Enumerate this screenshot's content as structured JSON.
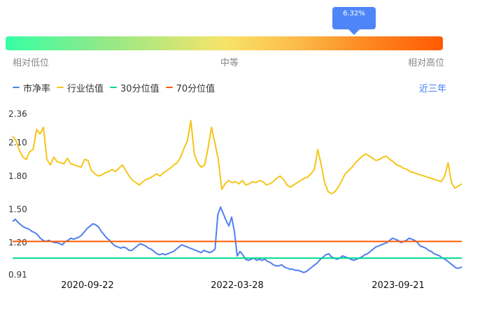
{
  "indicator": {
    "value_label": "6.32%",
    "low_label": "相对低位",
    "mid_label": "中等",
    "high_label": "相对高位"
  },
  "period_label": "近三年",
  "colors": {
    "pb": "#4e7ff0",
    "industry": "#f5c518",
    "p30": "#00d98b",
    "p70": "#ff5a00"
  },
  "chart_data": {
    "type": "line",
    "x_ticks": [
      "2020-09-22",
      "2022-03-28",
      "2023-09-21"
    ],
    "y_ticks": [
      0.91,
      1.2,
      1.5,
      1.8,
      2.1,
      2.36
    ],
    "ylim": [
      0.91,
      2.36
    ],
    "xlabel": "",
    "ylabel": "",
    "legend_position": "top-left",
    "series": [
      {
        "name": "市净率",
        "color": "#4e7ff0",
        "values": [
          1.39,
          1.41,
          1.38,
          1.36,
          1.34,
          1.33,
          1.32,
          1.3,
          1.29,
          1.27,
          1.24,
          1.22,
          1.21,
          1.22,
          1.21,
          1.2,
          1.2,
          1.19,
          1.18,
          1.21,
          1.22,
          1.24,
          1.23,
          1.24,
          1.25,
          1.27,
          1.3,
          1.33,
          1.35,
          1.37,
          1.36,
          1.34,
          1.3,
          1.27,
          1.24,
          1.22,
          1.19,
          1.17,
          1.16,
          1.15,
          1.16,
          1.15,
          1.13,
          1.13,
          1.15,
          1.17,
          1.19,
          1.18,
          1.17,
          1.15,
          1.14,
          1.12,
          1.1,
          1.09,
          1.1,
          1.09,
          1.1,
          1.11,
          1.12,
          1.14,
          1.16,
          1.18,
          1.17,
          1.16,
          1.15,
          1.14,
          1.13,
          1.12,
          1.11,
          1.13,
          1.12,
          1.11,
          1.12,
          1.14,
          1.45,
          1.52,
          1.46,
          1.4,
          1.35,
          1.43,
          1.3,
          1.08,
          1.12,
          1.09,
          1.05,
          1.04,
          1.05,
          1.06,
          1.04,
          1.05,
          1.04,
          1.05,
          1.03,
          1.02,
          1.0,
          0.99,
          0.99,
          1.0,
          0.98,
          0.97,
          0.96,
          0.96,
          0.95,
          0.95,
          0.94,
          0.93,
          0.94,
          0.96,
          0.98,
          1.0,
          1.02,
          1.05,
          1.07,
          1.09,
          1.1,
          1.07,
          1.06,
          1.05,
          1.06,
          1.08,
          1.07,
          1.06,
          1.05,
          1.04,
          1.05,
          1.06,
          1.07,
          1.09,
          1.1,
          1.12,
          1.14,
          1.16,
          1.17,
          1.18,
          1.19,
          1.2,
          1.22,
          1.24,
          1.23,
          1.22,
          1.2,
          1.21,
          1.22,
          1.24,
          1.23,
          1.22,
          1.2,
          1.17,
          1.16,
          1.15,
          1.13,
          1.12,
          1.1,
          1.09,
          1.08,
          1.06,
          1.05,
          1.03,
          1.01,
          0.99,
          0.97,
          0.97,
          0.98
        ]
      },
      {
        "name": "行业估值",
        "color": "#f5c518",
        "values": [
          2.16,
          2.12,
          2.03,
          1.97,
          1.95,
          2.02,
          2.04,
          2.22,
          2.18,
          2.24,
          1.95,
          1.9,
          1.97,
          1.93,
          1.92,
          1.91,
          1.96,
          1.91,
          1.9,
          1.89,
          1.88,
          1.95,
          1.94,
          1.85,
          1.82,
          1.8,
          1.81,
          1.83,
          1.84,
          1.86,
          1.84,
          1.87,
          1.9,
          1.85,
          1.8,
          1.76,
          1.74,
          1.72,
          1.75,
          1.77,
          1.78,
          1.8,
          1.82,
          1.8,
          1.83,
          1.85,
          1.87,
          1.9,
          1.92,
          1.97,
          2.05,
          2.12,
          2.3,
          2.0,
          1.92,
          1.88,
          1.9,
          2.05,
          2.24,
          2.1,
          1.95,
          1.68,
          1.73,
          1.76,
          1.74,
          1.75,
          1.73,
          1.76,
          1.72,
          1.73,
          1.75,
          1.74,
          1.76,
          1.75,
          1.72,
          1.73,
          1.75,
          1.78,
          1.8,
          1.77,
          1.72,
          1.7,
          1.72,
          1.74,
          1.76,
          1.78,
          1.79,
          1.82,
          1.86,
          2.04,
          1.9,
          1.74,
          1.66,
          1.64,
          1.66,
          1.7,
          1.76,
          1.82,
          1.85,
          1.88,
          1.92,
          1.95,
          1.98,
          2.0,
          1.98,
          1.96,
          1.94,
          1.95,
          1.97,
          1.98,
          1.95,
          1.93,
          1.9,
          1.89,
          1.87,
          1.86,
          1.84,
          1.83,
          1.82,
          1.81,
          1.8,
          1.79,
          1.78,
          1.77,
          1.76,
          1.75,
          1.8,
          1.92,
          1.74,
          1.69,
          1.71,
          1.73
        ]
      },
      {
        "name": "30分位值",
        "color": "#00d98b",
        "values": [
          1.06,
          1.06
        ]
      },
      {
        "name": "70分位值",
        "color": "#ff5a00",
        "values": [
          1.21,
          1.21
        ]
      }
    ]
  }
}
